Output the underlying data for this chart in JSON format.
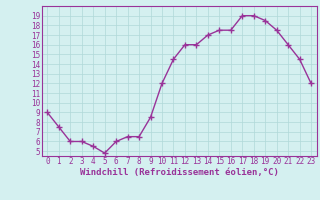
{
  "x": [
    0,
    1,
    2,
    3,
    4,
    5,
    6,
    7,
    8,
    9,
    10,
    11,
    12,
    13,
    14,
    15,
    16,
    17,
    18,
    19,
    20,
    21,
    22,
    23
  ],
  "y": [
    9.0,
    7.5,
    6.0,
    6.0,
    5.5,
    4.8,
    6.0,
    6.5,
    6.5,
    8.5,
    12.0,
    14.5,
    16.0,
    16.0,
    17.0,
    17.5,
    17.5,
    19.0,
    19.0,
    18.5,
    17.5,
    16.0,
    14.5,
    12.0
  ],
  "line_color": "#993399",
  "marker": "+",
  "marker_size": 4,
  "marker_linewidth": 1.0,
  "line_width": 1.0,
  "background_color": "#d4f0f0",
  "grid_color": "#b0d8d8",
  "xlabel": "Windchill (Refroidissement éolien,°C)",
  "xlabel_color": "#993399",
  "tick_color": "#993399",
  "ylim": [
    4.5,
    20
  ],
  "xlim": [
    -0.5,
    23.5
  ],
  "yticks": [
    5,
    6,
    7,
    8,
    9,
    10,
    11,
    12,
    13,
    14,
    15,
    16,
    17,
    18,
    19
  ],
  "xticks": [
    0,
    1,
    2,
    3,
    4,
    5,
    6,
    7,
    8,
    9,
    10,
    11,
    12,
    13,
    14,
    15,
    16,
    17,
    18,
    19,
    20,
    21,
    22,
    23
  ],
  "xtick_labels": [
    "0",
    "1",
    "2",
    "3",
    "4",
    "5",
    "6",
    "7",
    "8",
    "9",
    "10",
    "11",
    "12",
    "13",
    "14",
    "15",
    "16",
    "17",
    "18",
    "19",
    "20",
    "21",
    "22",
    "23"
  ],
  "ytick_labels": [
    "5",
    "6",
    "7",
    "8",
    "9",
    "10",
    "11",
    "12",
    "13",
    "14",
    "15",
    "16",
    "17",
    "18",
    "19"
  ],
  "spine_color": "#993399",
  "tick_fontsize": 5.5,
  "xlabel_fontsize": 6.5,
  "xlabel_fontweight": "bold"
}
